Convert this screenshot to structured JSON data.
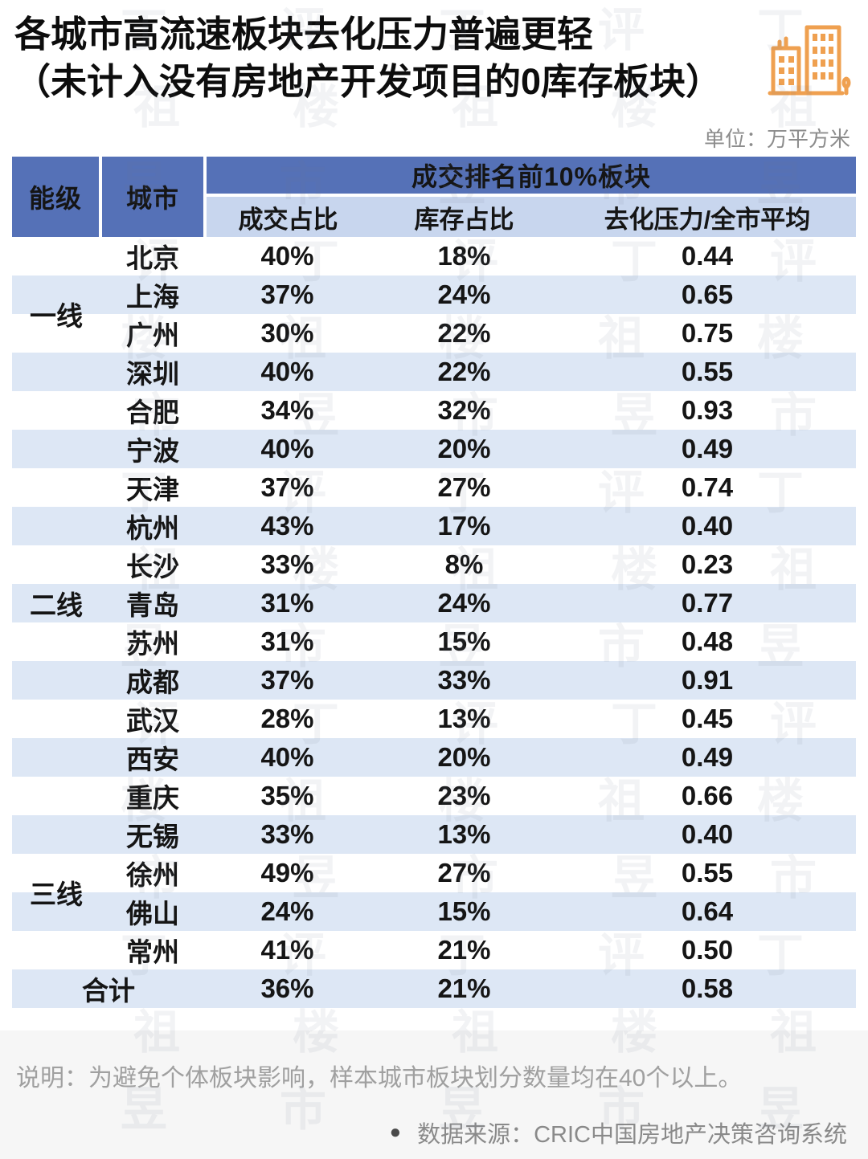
{
  "page": {
    "title_line1": "各城市高流速板块去化压力普遍更轻",
    "title_line2": "（未计入没有房地产开发项目的0库存板块）",
    "unit_label": "单位：万平方米",
    "note": "说明：为避免个体板块影响，样本城市板块划分数量均在40个以上。",
    "source_bullet": "●",
    "source": "数据来源：CRIC中国房地产决策咨询系统",
    "watermark_text": "丁祖昱评楼市"
  },
  "colors": {
    "header_blue": "#5571b7",
    "subheader_blue": "#c8d6ee",
    "band_blue": "#dde7f5",
    "icon_orange": "#efa050",
    "note_gray": "#a0a0a0"
  },
  "table": {
    "col_tier": "能级",
    "col_city": "城市",
    "col_group": "成交排名前10%板块",
    "col_deal": "成交占比",
    "col_stock": "库存占比",
    "col_pressure": "去化压力/全市平均",
    "tier_spans": {
      "一线": 4,
      "二线": 11,
      "三线": 4
    },
    "total_label": "合计"
  },
  "chart_data": {
    "type": "table",
    "title": "各城市高流速板块去化压力普遍更轻（未计入没有房地产开发项目的0库存板块）",
    "unit": "万平方米",
    "columns": [
      "能级",
      "城市",
      "成交占比",
      "库存占比",
      "去化压力/全市平均"
    ],
    "rows": [
      [
        "一线",
        "北京",
        "40%",
        "18%",
        "0.44"
      ],
      [
        "",
        "上海",
        "37%",
        "24%",
        "0.65"
      ],
      [
        "",
        "广州",
        "30%",
        "22%",
        "0.75"
      ],
      [
        "",
        "深圳",
        "40%",
        "22%",
        "0.55"
      ],
      [
        "二线",
        "合肥",
        "34%",
        "32%",
        "0.93"
      ],
      [
        "",
        "宁波",
        "40%",
        "20%",
        "0.49"
      ],
      [
        "",
        "天津",
        "37%",
        "27%",
        "0.74"
      ],
      [
        "",
        "杭州",
        "43%",
        "17%",
        "0.40"
      ],
      [
        "",
        "长沙",
        "33%",
        "8%",
        "0.23"
      ],
      [
        "",
        "青岛",
        "31%",
        "24%",
        "0.77"
      ],
      [
        "",
        "苏州",
        "31%",
        "15%",
        "0.48"
      ],
      [
        "",
        "成都",
        "37%",
        "33%",
        "0.91"
      ],
      [
        "",
        "武汉",
        "28%",
        "13%",
        "0.45"
      ],
      [
        "",
        "西安",
        "40%",
        "20%",
        "0.49"
      ],
      [
        "",
        "重庆",
        "35%",
        "23%",
        "0.66"
      ],
      [
        "三线",
        "无锡",
        "33%",
        "13%",
        "0.40"
      ],
      [
        "",
        "徐州",
        "49%",
        "27%",
        "0.55"
      ],
      [
        "",
        "佛山",
        "24%",
        "15%",
        "0.64"
      ],
      [
        "",
        "常州",
        "41%",
        "21%",
        "0.50"
      ],
      [
        "合计",
        "",
        "36%",
        "21%",
        "0.58"
      ]
    ],
    "source": "CRIC中国房地产决策咨询系统"
  }
}
